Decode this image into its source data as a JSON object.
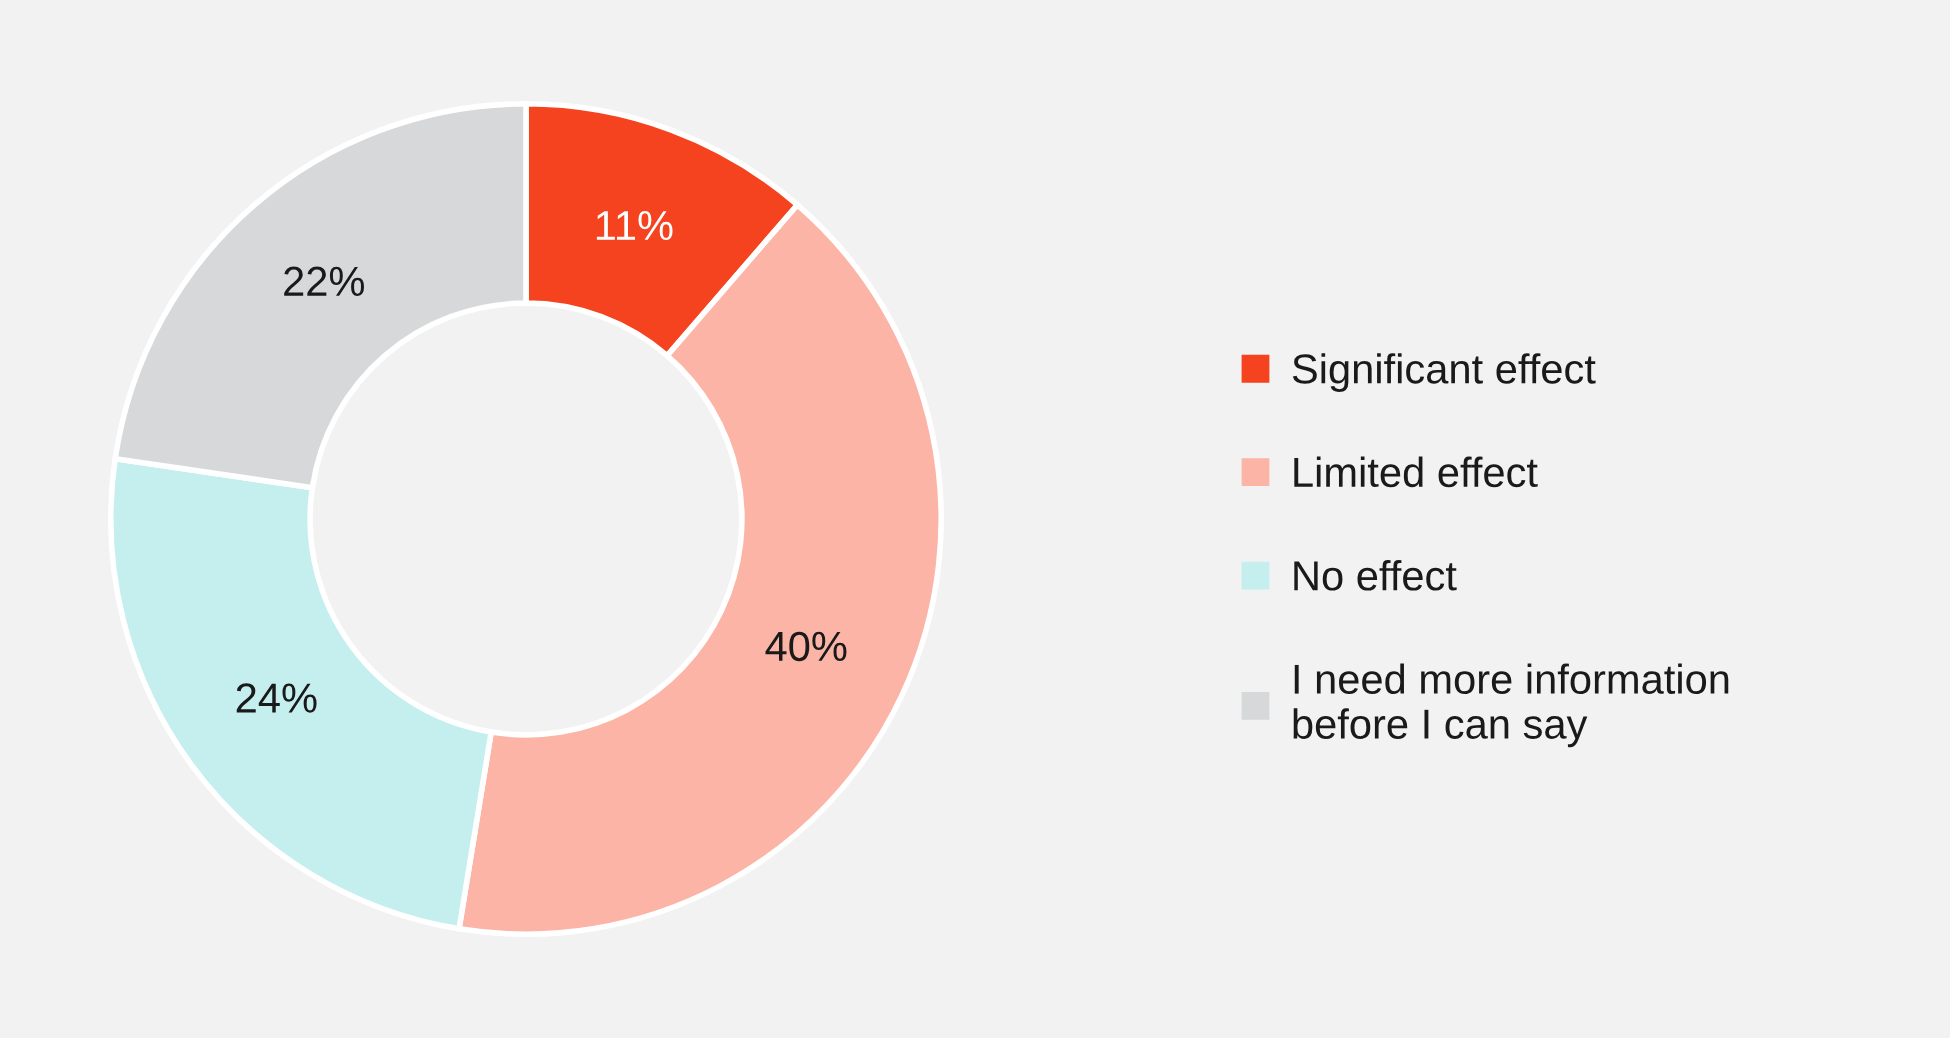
{
  "chart_data": {
    "type": "donut",
    "categories": [
      "Significant effect",
      "Limited effect",
      "No effect",
      "I need more information\nbefore I can say"
    ],
    "values": [
      11,
      40,
      24,
      22
    ],
    "value_labels": [
      "11%",
      "40%",
      "24%",
      "22%"
    ],
    "colors": [
      "#f5431f",
      "#fbb4a6",
      "#c5eeef",
      "#d6d8da"
    ],
    "legend": "right"
  }
}
